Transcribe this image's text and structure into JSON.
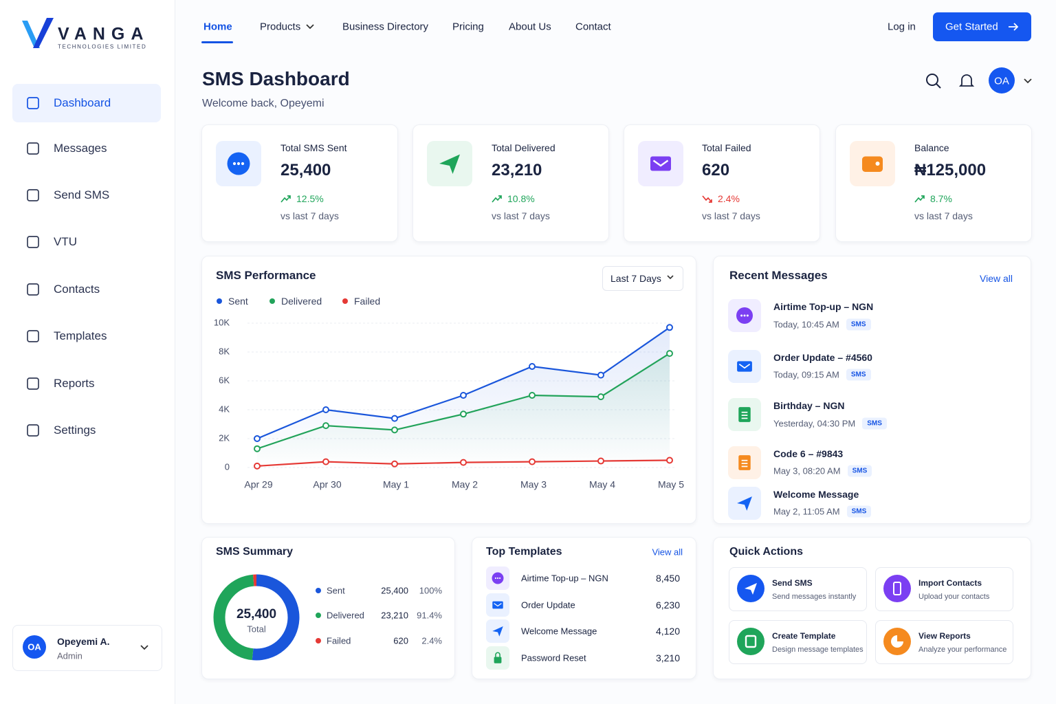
{
  "brand": {
    "name": "VANGA",
    "tagline": "TECHNOLOGIES LIMITED"
  },
  "sidebar": {
    "items": [
      "Dashboard",
      "Messages",
      "Send SMS",
      "VTU",
      "Contacts",
      "Templates",
      "Reports",
      "Settings"
    ],
    "user": {
      "initials": "OA",
      "name": "Opeyemi A.",
      "role": "Admin"
    }
  },
  "nav": {
    "links": [
      "Home",
      "Products",
      "Business Directory",
      "Pricing",
      "About Us",
      "Contact"
    ],
    "login": "Log in",
    "cta": "Get Started"
  },
  "header": {
    "title": "SMS Dashboard",
    "subtitle": "Welcome back, Opeyemi",
    "avatar": "OA"
  },
  "stats": [
    {
      "label": "Total SMS Sent",
      "value": "25,400",
      "change": "12.5%",
      "trend": "up",
      "note": "vs last 7 days"
    },
    {
      "label": "Total Delivered",
      "value": "23,210",
      "change": "10.8%",
      "trend": "up",
      "note": "vs last 7 days"
    },
    {
      "label": "Total Failed",
      "value": "620",
      "change": "2.4%",
      "trend": "down",
      "note": "vs last 7 days"
    },
    {
      "label": "Balance",
      "value": "₦125,000",
      "change": "8.7%",
      "trend": "up",
      "note": "vs last 7 days"
    }
  ],
  "chart_data": [
    {
      "type": "line",
      "title": "SMS Performance",
      "filter": "Last 7 Days",
      "categories": [
        "Apr 29",
        "Apr 30",
        "May 1",
        "May 2",
        "May 3",
        "May 4",
        "May 5"
      ],
      "series": [
        {
          "name": "Sent",
          "color": "#1a56db",
          "values": [
            2000,
            4000,
            3400,
            5000,
            7000,
            6400,
            9700
          ]
        },
        {
          "name": "Delivered",
          "color": "#22a35a",
          "values": [
            1300,
            2900,
            2600,
            3700,
            5000,
            4900,
            7900
          ]
        },
        {
          "name": "Failed",
          "color": "#e53935",
          "values": [
            100,
            400,
            250,
            350,
            400,
            450,
            500
          ]
        }
      ],
      "ylim": [
        0,
        10000
      ],
      "yticks": [
        0,
        {
          "value": 2000,
          "label": "2K"
        },
        {
          "value": 4000,
          "label": "4K"
        },
        {
          "value": 6000,
          "label": "6K"
        },
        {
          "value": 8000,
          "label": "8K"
        },
        {
          "value": 10000,
          "label": "10K"
        }
      ],
      "grid": true
    },
    {
      "type": "donut",
      "title": "SMS Summary",
      "center_value": "25,400",
      "center_label": "Total",
      "categories": [
        "Sent",
        "Delivered",
        "Failed"
      ],
      "values": [
        25400,
        23210,
        620
      ],
      "value_labels": [
        "25,400",
        "23,210",
        "620"
      ],
      "percents": [
        "100%",
        "91.4%",
        "2.4%"
      ],
      "colors": [
        "#1a56db",
        "#1fa55a",
        "#e53935"
      ]
    }
  ],
  "recent": {
    "title": "Recent Messages",
    "view_all": "View all",
    "items": [
      {
        "title": "Airtime Top-up – NGN",
        "time": "Today, 10:45 AM",
        "tag": "SMS"
      },
      {
        "title": "Order Update – #4560",
        "time": "Today, 09:15 AM",
        "tag": "SMS"
      },
      {
        "title": "Birthday – NGN",
        "time": "Yesterday, 04:30 PM",
        "tag": "SMS"
      },
      {
        "title": "Code 6 – #9843",
        "time": "May 3, 08:20 AM",
        "tag": "SMS"
      },
      {
        "title": "Welcome Message",
        "time": "May 2, 11:05 AM",
        "tag": "SMS"
      }
    ]
  },
  "templates": {
    "title": "Top Templates",
    "view_all": "View all",
    "rows": [
      {
        "name": "Airtime Top-up – NGN",
        "count": "8,450"
      },
      {
        "name": "Order Update",
        "count": "6,230"
      },
      {
        "name": "Welcome Message",
        "count": "4,120"
      },
      {
        "name": "Password Reset",
        "count": "3,210"
      }
    ]
  },
  "quick_actions": {
    "title": "Quick Actions",
    "items": [
      {
        "title": "Send SMS",
        "desc": "Send messages instantly"
      },
      {
        "title": "Import Contacts",
        "desc": "Upload your contacts"
      },
      {
        "title": "Create Template",
        "desc": "Design message templates"
      },
      {
        "title": "View Reports",
        "desc": "Analyze your performance"
      }
    ]
  }
}
